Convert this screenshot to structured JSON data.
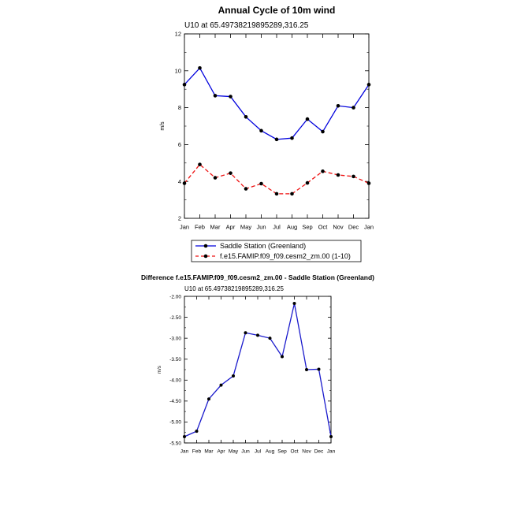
{
  "chart_data": [
    {
      "type": "line",
      "title": "Annual Cycle of 10m wind",
      "subtitle": "U10 at 65.49738219895289,316.25",
      "ylabel": "m/s",
      "xlabel": "",
      "ylim": [
        2,
        12
      ],
      "yticks": [
        2,
        4,
        6,
        8,
        10,
        12
      ],
      "categories": [
        "Jan",
        "Feb",
        "Mar",
        "Apr",
        "May",
        "Jun",
        "Jul",
        "Aug",
        "Sep",
        "Oct",
        "Nov",
        "Dec",
        "Jan"
      ],
      "grid": false,
      "legend": "bottom",
      "series": [
        {
          "name": "Saddle Station (Greenland)",
          "color": "#0000dd",
          "dash": "solid",
          "values": [
            9.25,
            10.15,
            8.65,
            8.6,
            7.5,
            6.75,
            6.28,
            6.35,
            7.38,
            6.7,
            8.1,
            8.0,
            9.25
          ]
        },
        {
          "name": "f.e15.FAMIP.f09_f09.cesm2_zm.00 (1-10)",
          "color": "#ee1111",
          "dash": "dashed",
          "values": [
            3.9,
            4.92,
            4.2,
            4.45,
            3.6,
            3.88,
            3.33,
            3.33,
            3.92,
            4.55,
            4.35,
            4.27,
            3.9
          ]
        }
      ]
    },
    {
      "type": "line",
      "title": "Difference f.e15.FAMIP.f09_f09.cesm2_zm.00 - Saddle Station (Greenland)",
      "subtitle": "U10 at 65.49738219895289,316.25",
      "ylabel": "m/s",
      "xlabel": "",
      "ylim": [
        -5.5,
        -2.0
      ],
      "yticks": [
        "-5.50",
        "-5.00",
        "-4.50",
        "-4.00",
        "-3.50",
        "-3.00",
        "-2.50",
        "-2.00"
      ],
      "categories": [
        "Jan",
        "Feb",
        "Mar",
        "Apr",
        "May",
        "Jun",
        "Jul",
        "Aug",
        "Sep",
        "Oct",
        "Nov",
        "Dec",
        "Jan"
      ],
      "grid": false,
      "legend": "none",
      "series": [
        {
          "color": "#1a1acc",
          "dash": "solid",
          "values": [
            -5.35,
            -5.22,
            -4.45,
            -4.12,
            -3.9,
            -2.87,
            -2.93,
            -3.0,
            -3.44,
            -2.17,
            -3.75,
            -3.74,
            -5.35
          ]
        }
      ]
    }
  ]
}
